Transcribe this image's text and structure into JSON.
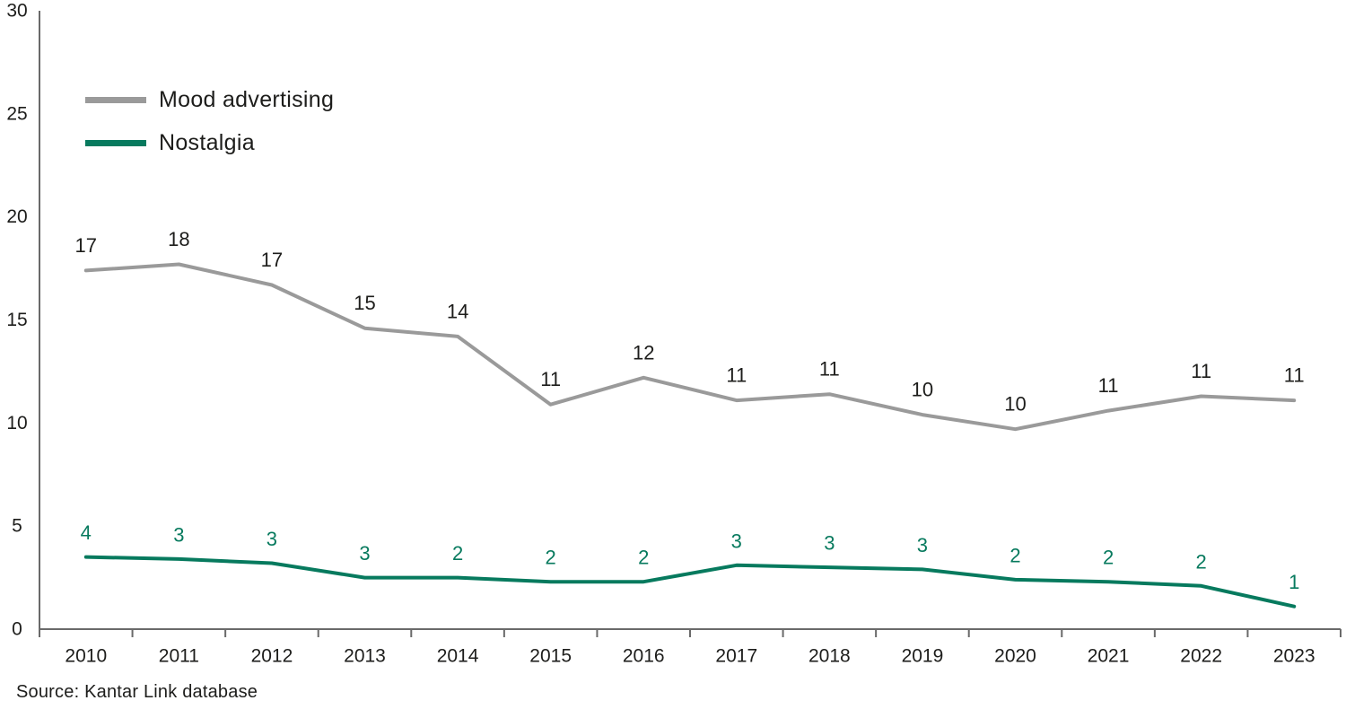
{
  "chart_data": {
    "type": "line",
    "title": "",
    "xlabel": "",
    "ylabel": "",
    "categories": [
      "2010",
      "2011",
      "2012",
      "2013",
      "2014",
      "2015",
      "2016",
      "2017",
      "2018",
      "2019",
      "2020",
      "2021",
      "2022",
      "2023"
    ],
    "series": [
      {
        "name": "Mood advertising",
        "color": "#9a9a9a",
        "values": [
          17,
          18,
          17,
          15,
          14,
          11,
          12,
          11,
          11,
          10,
          10,
          11,
          11,
          11
        ],
        "line_values_estimate": [
          17.4,
          17.7,
          16.7,
          14.6,
          14.2,
          10.9,
          12.2,
          11.1,
          11.4,
          10.4,
          9.7,
          10.6,
          11.3,
          11.1
        ]
      },
      {
        "name": "Nostalgia",
        "color": "#077a5e",
        "values": [
          4,
          3,
          3,
          3,
          2,
          2,
          2,
          3,
          3,
          3,
          2,
          2,
          2,
          1
        ],
        "line_values_estimate": [
          3.5,
          3.4,
          3.2,
          2.5,
          2.5,
          2.3,
          2.3,
          3.1,
          3.0,
          2.9,
          2.4,
          2.3,
          2.1,
          1.1
        ]
      }
    ],
    "yticks": [
      0,
      5,
      10,
      15,
      20,
      25,
      30
    ],
    "ylim": [
      0,
      30
    ],
    "grid": false,
    "data_labels": true,
    "legend_position": "top-left"
  },
  "legend": {
    "items": [
      {
        "label": "Mood advertising",
        "color": "#9a9a9a"
      },
      {
        "label": "Nostalgia",
        "color": "#077a5e"
      }
    ]
  },
  "source": {
    "text": "Source: Kantar Link database"
  },
  "colors": {
    "text": "#1d1d1b",
    "axis": "#6a6a6a",
    "background": "#ffffff",
    "mood_line": "#9a9a9a",
    "nostalgia_line": "#077a5e"
  }
}
